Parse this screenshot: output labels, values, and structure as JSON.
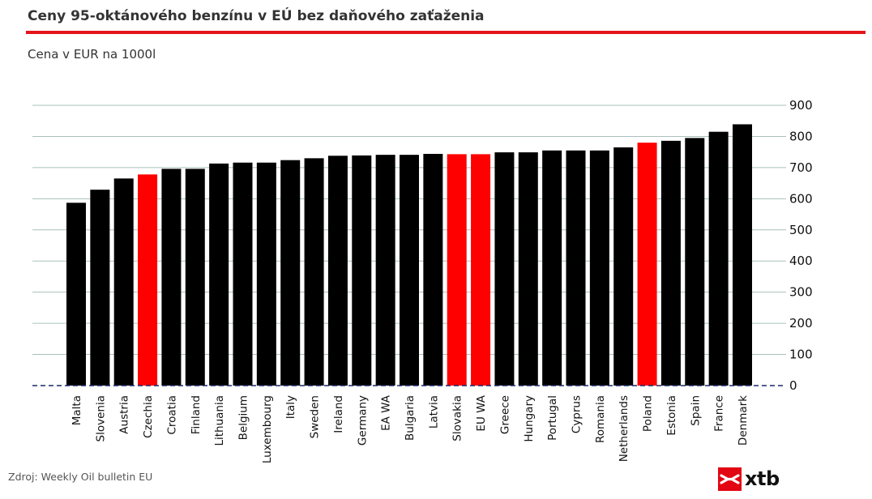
{
  "header": {
    "title": "Ceny 95-oktánového benzínu v EÚ bez daňového zaťaženia",
    "subtitle": "Cena v EUR na 1000l"
  },
  "footer": {
    "source": "Zdroj: Weekly Oil bulletin EU",
    "logo_text": "xtb"
  },
  "colors": {
    "accent": "#e4141b",
    "bar_default": "#000000",
    "bar_highlight": "#ff0000",
    "grid": "#a9c0bd",
    "baseline": "#1a2a6c",
    "logo_bg": "#e30613"
  },
  "chart_data": {
    "type": "bar",
    "title": "Ceny 95-oktánového benzínu v EÚ bez daňového zaťaženia",
    "subtitle": "Cena v EUR na 1000l",
    "categories": [
      "Malta",
      "Slovenia",
      "Austria",
      "Czechia",
      "Croatia",
      "Finland",
      "Lithuania",
      "Belgium",
      "Luxembourg",
      "Italy",
      "Sweden",
      "Ireland",
      "Germany",
      "EA WA",
      "Bulgaria",
      "Latvia",
      "Slovakia",
      "EU WA",
      "Greece",
      "Hungary",
      "Portugal",
      "Cyprus",
      "Romania",
      "Netherlands",
      "Poland",
      "Estonia",
      "Spain",
      "France",
      "Denmark"
    ],
    "values": [
      587,
      629,
      665,
      678,
      696,
      696,
      713,
      716,
      716,
      724,
      730,
      738,
      739,
      741,
      741,
      744,
      743,
      743,
      749,
      749,
      755,
      755,
      755,
      765,
      780,
      786,
      795,
      815,
      839
    ],
    "highlighted": [
      "Czechia",
      "Slovakia",
      "EU WA",
      "Poland"
    ],
    "ylim": [
      0,
      900
    ],
    "yticks": [
      0,
      100,
      200,
      300,
      400,
      500,
      600,
      700,
      800,
      900
    ],
    "y_axis_side": "right",
    "grid": true
  }
}
